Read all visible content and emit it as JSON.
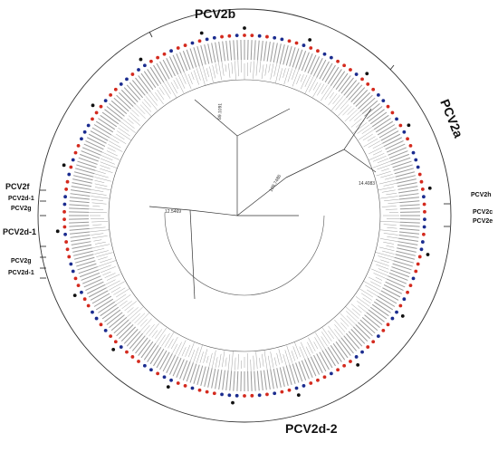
{
  "genotype_labels": {
    "pcv2b": "PCV2b",
    "pcv2a": "PCV2a",
    "pcv2d2": "PCV2d-2",
    "pcv2f": "PCV2f",
    "pcv2d1_top": "PCV2d-1",
    "pcv2g_top": "PCV2g",
    "pcv2d1_mid": "PCV2d-1",
    "pcv2g_bottom": "PCV2g",
    "pcv2d1_bottom": "PCV2d-1",
    "pcv2h": "PCV2h",
    "pcv2c": "PCV2c",
    "pcv2e": "PCV2e"
  },
  "branch_lengths": {
    "a": "89.1091",
    "b": "109.7486",
    "c": "14.4083",
    "d": "12.5469"
  },
  "colors": {
    "red_marker": "#d42a1e",
    "blue_marker": "#1b2c8f",
    "black_marker": "#111111",
    "line": "#333333"
  },
  "marker_pattern": "RRBRBBRRBRRBBRRRBRRRBBRRBRBRRBBBRRRBRRBBRBBRRRB"
}
